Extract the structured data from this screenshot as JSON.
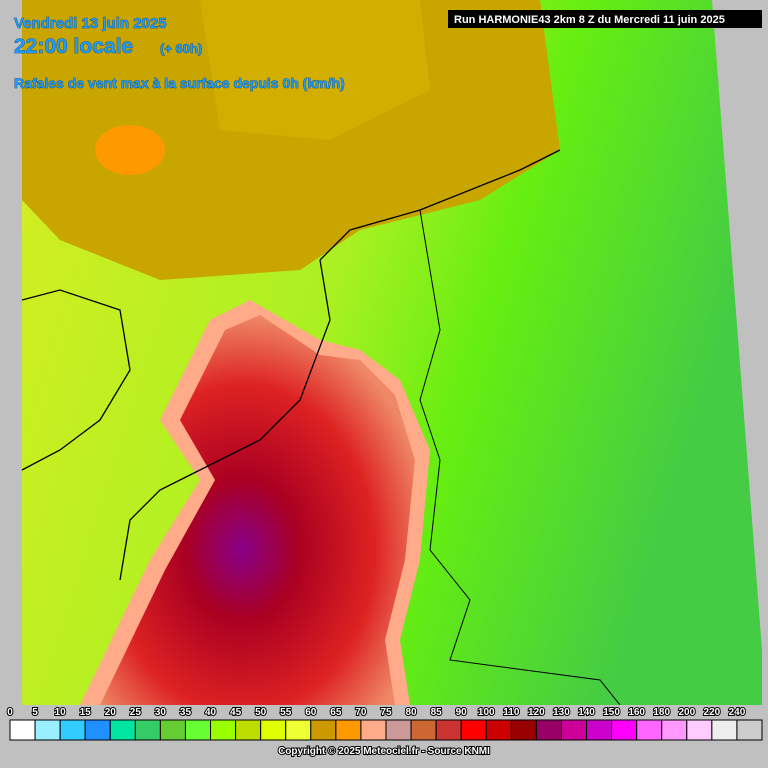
{
  "header": {
    "date": "Vendredi 13 juin 2025",
    "time": "22:00 locale",
    "offset": "(+ 60h)",
    "subtitle": "Rafales de vent max à la surface depuis 0h (km/h)"
  },
  "run": "Run HARMONIE43 2km 8 Z du Mercredi 11 juin 2025",
  "legend": {
    "labels": [
      0,
      5,
      10,
      15,
      20,
      25,
      30,
      35,
      40,
      45,
      50,
      55,
      60,
      65,
      70,
      75,
      80,
      85,
      90,
      100,
      110,
      120,
      130,
      140,
      150,
      160,
      180,
      200,
      220,
      240
    ],
    "colors": [
      "#ffffff",
      "#99eeff",
      "#33ccff",
      "#1e90ff",
      "#00e6a0",
      "#33cc66",
      "#66cc33",
      "#66ff33",
      "#99ff00",
      "#bbdd00",
      "#ddff00",
      "#eeff33",
      "#cc9900",
      "#ff9900",
      "#ffaa88",
      "#cc9999",
      "#cc6633",
      "#cc3333",
      "#ff0000",
      "#cc0000",
      "#990000",
      "#990066",
      "#cc0099",
      "#cc00cc",
      "#ff00ff",
      "#ff66ff",
      "#ff99ff",
      "#ffccff",
      "#eeeeee",
      "#cccccc"
    ]
  },
  "copyright": "Copyright © 2025 Meteociel.fr - Source KNMI"
}
